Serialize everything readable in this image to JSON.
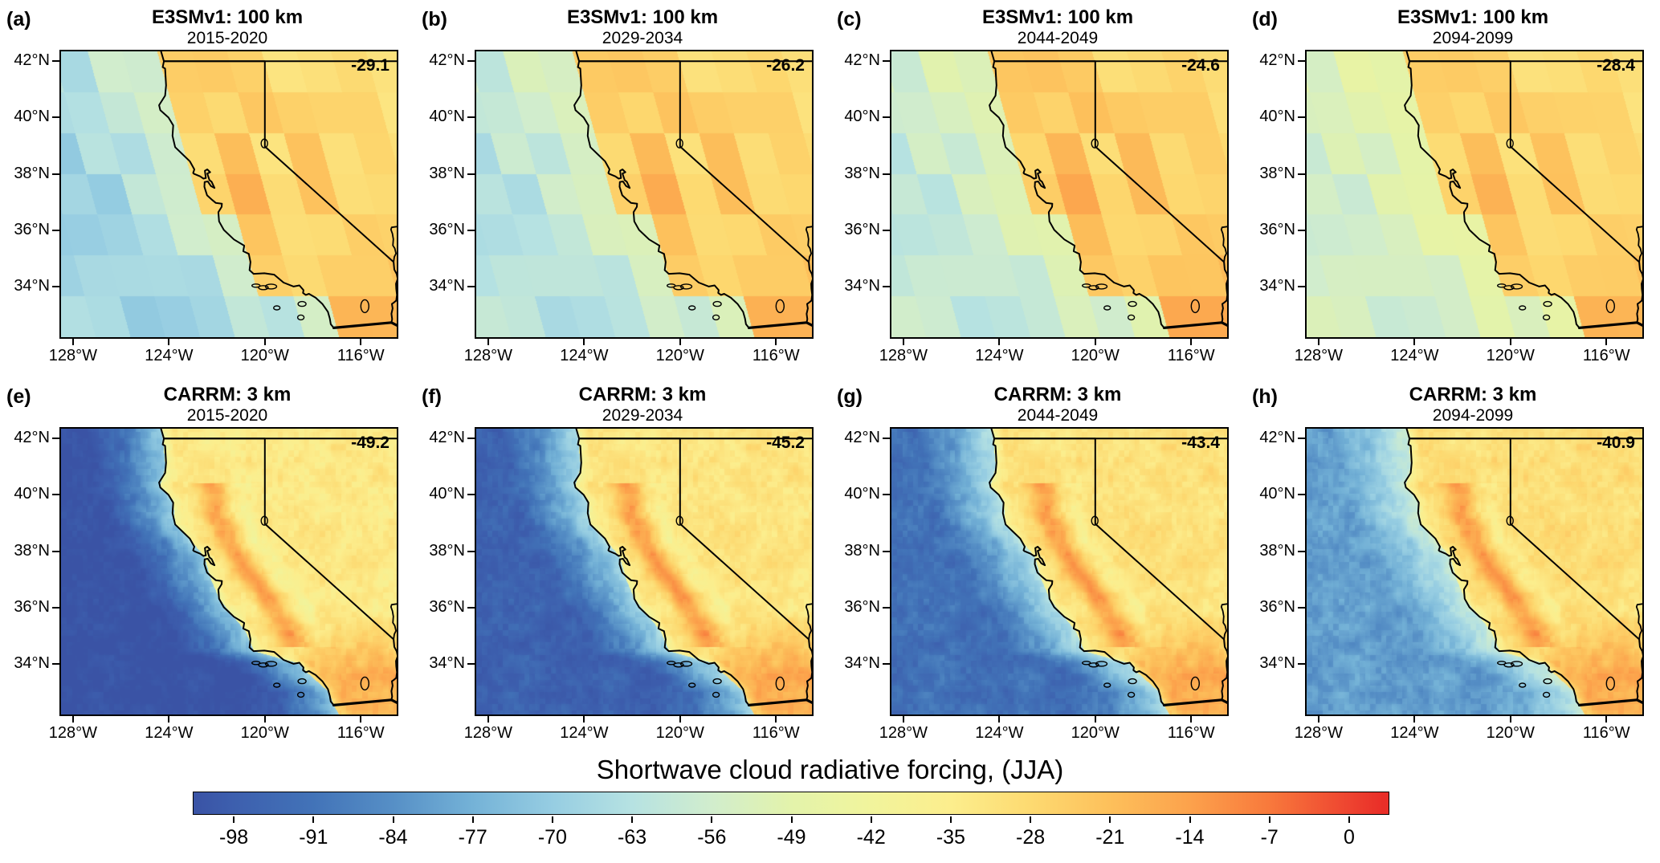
{
  "chart_data": {
    "type": "heatmap",
    "title": "Shortwave cloud radiative forcing,  (JJA)",
    "variable": "Shortwave cloud radiative forcing",
    "season": "JJA",
    "layout": "2 rows x 4 columns of geographic map panels over California",
    "colorbar_ticks": [
      -98,
      -91,
      -84,
      -77,
      -70,
      -63,
      -56,
      -49,
      -42,
      -35,
      -28,
      -21,
      -14,
      -7,
      0
    ],
    "map_extent": {
      "lon_ticks": [
        "128°W",
        "124°W",
        "120°W",
        "116°W"
      ],
      "lat_ticks": [
        "42°N",
        "40°N",
        "38°N",
        "36°N",
        "34°N"
      ]
    },
    "panels": [
      {
        "id": "a",
        "model": "E3SMv1: 100 km",
        "period": "2015-2020",
        "domain_mean": -29.1
      },
      {
        "id": "b",
        "model": "E3SMv1: 100 km",
        "period": "2029-2034",
        "domain_mean": -26.2
      },
      {
        "id": "c",
        "model": "E3SMv1: 100 km",
        "period": "2044-2049",
        "domain_mean": -24.6
      },
      {
        "id": "d",
        "model": "E3SMv1: 100 km",
        "period": "2094-2099",
        "domain_mean": -28.4
      },
      {
        "id": "e",
        "model": "CARRM: 3 km",
        "period": "2015-2020",
        "domain_mean": -49.2
      },
      {
        "id": "f",
        "model": "CARRM: 3 km",
        "period": "2029-2034",
        "domain_mean": -45.2
      },
      {
        "id": "g",
        "model": "CARRM: 3 km",
        "period": "2044-2049",
        "domain_mean": -43.4
      },
      {
        "id": "h",
        "model": "CARRM: 3 km",
        "period": "2094-2099",
        "domain_mean": -40.9
      }
    ]
  },
  "panels": [
    {
      "letter": "(a)",
      "model": "E3SMv1: 100 km",
      "period": "2015-2020",
      "mean": "-29.1",
      "field": {
        "coarse": true,
        "cell": 1.45,
        "skew": 0.22,
        "jitter": 4.5,
        "noise": 2.5,
        "ocean_scale": 4.2,
        "coast_dip": 4,
        "sierra_dip": 3,
        "mesh": 0,
        "ocean_near": -51,
        "ocean_far": -67,
        "land_base": -27,
        "valley_boost": 9,
        "south_boost": 7
      }
    },
    {
      "letter": "(b)",
      "model": "E3SMv1: 100 km",
      "period": "2029-2034",
      "mean": "-26.2",
      "field": {
        "coarse": true,
        "cell": 1.45,
        "skew": 0.22,
        "jitter": 4.5,
        "noise": 2.5,
        "ocean_scale": 4.2,
        "coast_dip": 4,
        "sierra_dip": 3,
        "mesh": 0,
        "ocean_near": -49,
        "ocean_far": -62,
        "land_base": -26,
        "valley_boost": 9,
        "south_boost": 7
      }
    },
    {
      "letter": "(c)",
      "model": "E3SMv1: 100 km",
      "period": "2044-2049",
      "mean": "-24.6",
      "field": {
        "coarse": true,
        "cell": 1.45,
        "skew": 0.22,
        "jitter": 4.5,
        "noise": 2.5,
        "ocean_scale": 4.2,
        "coast_dip": 4,
        "sierra_dip": 3,
        "mesh": 0,
        "ocean_near": -47,
        "ocean_far": -59,
        "land_base": -25,
        "valley_boost": 9,
        "south_boost": 8
      }
    },
    {
      "letter": "(d)",
      "model": "E3SMv1: 100 km",
      "period": "2094-2099",
      "mean": "-28.4",
      "field": {
        "coarse": true,
        "cell": 1.45,
        "skew": 0.22,
        "jitter": 4,
        "noise": 2.5,
        "ocean_scale": 4.2,
        "coast_dip": 4,
        "sierra_dip": 3,
        "mesh": 0,
        "ocean_near": -44,
        "ocean_far": -55,
        "land_base": -26.5,
        "valley_boost": 8,
        "south_boost": 7
      }
    },
    {
      "letter": "(e)",
      "model": "CARRM: 3 km",
      "period": "2015-2020",
      "mean": "-49.2",
      "field": {
        "coarse": false,
        "cell": 0,
        "skew": 0,
        "jitter": 0,
        "noise": 4.5,
        "ocean_scale": 3.0,
        "coast_dip": 9,
        "sierra_dip": 5,
        "mesh": 2.2,
        "ocean_near": -70,
        "ocean_far": -104,
        "land_base": -33,
        "valley_boost": 18,
        "south_boost": 15
      }
    },
    {
      "letter": "(f)",
      "model": "CARRM: 3 km",
      "period": "2029-2034",
      "mean": "-45.2",
      "field": {
        "coarse": false,
        "cell": 0,
        "skew": 0,
        "jitter": 0,
        "noise": 4.5,
        "ocean_scale": 3.0,
        "coast_dip": 9,
        "sierra_dip": 5,
        "mesh": 2.2,
        "ocean_near": -66,
        "ocean_far": -97,
        "land_base": -31.5,
        "valley_boost": 18,
        "south_boost": 15
      }
    },
    {
      "letter": "(g)",
      "model": "CARRM: 3 km",
      "period": "2044-2049",
      "mean": "-43.4",
      "field": {
        "coarse": false,
        "cell": 0,
        "skew": 0,
        "jitter": 0,
        "noise": 4.5,
        "ocean_scale": 3.0,
        "coast_dip": 9,
        "sierra_dip": 5,
        "mesh": 2.2,
        "ocean_near": -63,
        "ocean_far": -92,
        "land_base": -30.5,
        "valley_boost": 17,
        "south_boost": 14
      }
    },
    {
      "letter": "(h)",
      "model": "CARRM: 3 km",
      "period": "2094-2099",
      "mean": "-40.9",
      "field": {
        "coarse": false,
        "cell": 0,
        "skew": 0,
        "jitter": 0,
        "noise": 4.5,
        "ocean_scale": 3.0,
        "coast_dip": 9,
        "sierra_dip": 5,
        "mesh": 2.2,
        "ocean_near": -58,
        "ocean_far": -81,
        "land_base": -29.5,
        "valley_boost": 16,
        "south_boost": 13
      }
    }
  ],
  "axes": {
    "lon_range": [
      -128.5,
      -114.5
    ],
    "lat_range": [
      32.2,
      42.35
    ],
    "x_ticks": [
      {
        "label": "128°W",
        "lon": -128
      },
      {
        "label": "124°W",
        "lon": -124
      },
      {
        "label": "120°W",
        "lon": -120
      },
      {
        "label": "116°W",
        "lon": -116
      }
    ],
    "y_ticks": [
      {
        "label": "42°N",
        "lat": 42
      },
      {
        "label": "40°N",
        "lat": 40
      },
      {
        "label": "38°N",
        "lat": 38
      },
      {
        "label": "36°N",
        "lat": 36
      },
      {
        "label": "34°N",
        "lat": 34
      }
    ]
  },
  "colorbar": {
    "title": "Shortwave cloud radiative forcing,  (JJA)",
    "domain": [
      -101.5,
      3.5
    ],
    "ticks": [
      {
        "label": "-98",
        "v": -98
      },
      {
        "label": "-91",
        "v": -91
      },
      {
        "label": "-84",
        "v": -84
      },
      {
        "label": "-77",
        "v": -77
      },
      {
        "label": "-70",
        "v": -70
      },
      {
        "label": "-63",
        "v": -63
      },
      {
        "label": "-56",
        "v": -56
      },
      {
        "label": "-49",
        "v": -49
      },
      {
        "label": "-42",
        "v": -42
      },
      {
        "label": "-35",
        "v": -35
      },
      {
        "label": "-28",
        "v": -28
      },
      {
        "label": "-21",
        "v": -21
      },
      {
        "label": "-14",
        "v": -14
      },
      {
        "label": "-7",
        "v": -7
      },
      {
        "label": "0",
        "v": 0
      }
    ],
    "colormap": [
      [
        -105,
        "#3a53a5"
      ],
      [
        -98,
        "#3d5fae"
      ],
      [
        -91,
        "#4273b8"
      ],
      [
        -84,
        "#568fc6"
      ],
      [
        -77,
        "#74b2d7"
      ],
      [
        -70,
        "#96cde2"
      ],
      [
        -63,
        "#b6e2e2"
      ],
      [
        -56,
        "#d1edcd"
      ],
      [
        -49,
        "#e3f3ab"
      ],
      [
        -42,
        "#f1f49c"
      ],
      [
        -35,
        "#fcee8d"
      ],
      [
        -28,
        "#fdda71"
      ],
      [
        -21,
        "#fdc05b"
      ],
      [
        -14,
        "#fca24c"
      ],
      [
        -7,
        "#f8793c"
      ],
      [
        0,
        "#ee4430"
      ],
      [
        3,
        "#e92e28"
      ]
    ]
  },
  "geo": {
    "california": [
      [
        -124.21,
        42.0
      ],
      [
        -120.0,
        42.0
      ],
      [
        -120.0,
        38.97
      ],
      [
        -114.63,
        34.87
      ],
      [
        -114.6,
        34.6
      ],
      [
        -114.5,
        34.44
      ],
      [
        -114.46,
        34.27
      ],
      [
        -114.53,
        34.1
      ],
      [
        -114.52,
        33.92
      ],
      [
        -114.49,
        33.7
      ],
      [
        -114.52,
        33.5
      ],
      [
        -114.62,
        33.43
      ],
      [
        -114.7,
        33.38
      ],
      [
        -114.67,
        33.22
      ],
      [
        -114.72,
        33.03
      ],
      [
        -114.69,
        32.84
      ],
      [
        -114.72,
        32.72
      ],
      [
        -117.13,
        32.53
      ],
      [
        -117.25,
        32.66
      ],
      [
        -117.29,
        32.86
      ],
      [
        -117.37,
        33.1
      ],
      [
        -117.6,
        33.38
      ],
      [
        -117.88,
        33.6
      ],
      [
        -118.16,
        33.74
      ],
      [
        -118.29,
        33.7
      ],
      [
        -118.41,
        33.77
      ],
      [
        -118.39,
        33.87
      ],
      [
        -118.56,
        34.04
      ],
      [
        -118.8,
        34.0
      ],
      [
        -119.22,
        34.14
      ],
      [
        -119.61,
        34.42
      ],
      [
        -120.02,
        34.47
      ],
      [
        -120.47,
        34.45
      ],
      [
        -120.64,
        34.58
      ],
      [
        -120.6,
        34.87
      ],
      [
        -120.67,
        35.16
      ],
      [
        -120.9,
        35.25
      ],
      [
        -120.86,
        35.45
      ],
      [
        -121.29,
        35.67
      ],
      [
        -121.71,
        36.01
      ],
      [
        -121.91,
        36.31
      ],
      [
        -121.94,
        36.64
      ],
      [
        -121.8,
        36.83
      ],
      [
        -121.79,
        36.94
      ],
      [
        -122.05,
        36.97
      ],
      [
        -122.19,
        37.07
      ],
      [
        -122.41,
        37.24
      ],
      [
        -122.52,
        37.54
      ],
      [
        -122.51,
        37.71
      ],
      [
        -122.38,
        37.73
      ],
      [
        -122.25,
        37.57
      ],
      [
        -122.1,
        37.5
      ],
      [
        -122.22,
        37.72
      ],
      [
        -122.31,
        37.78
      ],
      [
        -122.4,
        38.01
      ],
      [
        -122.28,
        38.06
      ],
      [
        -122.4,
        38.16
      ],
      [
        -122.5,
        38.11
      ],
      [
        -122.46,
        37.85
      ],
      [
        -122.56,
        37.83
      ],
      [
        -122.7,
        37.91
      ],
      [
        -122.95,
        38.0
      ],
      [
        -122.99,
        38.03
      ],
      [
        -122.94,
        38.16
      ],
      [
        -123.13,
        38.45
      ],
      [
        -123.44,
        38.7
      ],
      [
        -123.74,
        38.95
      ],
      [
        -123.85,
        39.35
      ],
      [
        -123.82,
        39.72
      ],
      [
        -124.02,
        40.0
      ],
      [
        -124.36,
        40.26
      ],
      [
        -124.41,
        40.44
      ],
      [
        -124.16,
        40.78
      ],
      [
        -124.12,
        41.14
      ],
      [
        -124.16,
        41.74
      ],
      [
        -124.26,
        41.79
      ],
      [
        -124.21,
        42.0
      ]
    ],
    "lines": [
      {
        "name": "state-border-42n",
        "w": 2,
        "pts": [
          [
            -124.21,
            42.0
          ],
          [
            -114.5,
            42.0
          ]
        ]
      },
      {
        "name": "oregon-coast",
        "w": 2,
        "pts": [
          [
            -124.21,
            42.0
          ],
          [
            -124.33,
            42.35
          ]
        ]
      },
      {
        "name": "nv-az-colorado-river",
        "w": 1.8,
        "pts": [
          [
            -114.63,
            34.87
          ],
          [
            -114.6,
            35.05
          ],
          [
            -114.53,
            35.17
          ],
          [
            -114.58,
            35.35
          ],
          [
            -114.66,
            35.46
          ],
          [
            -114.64,
            35.68
          ],
          [
            -114.68,
            35.88
          ],
          [
            -114.74,
            36.02
          ],
          [
            -114.71,
            36.1
          ],
          [
            -114.48,
            36.13
          ]
        ]
      },
      {
        "name": "us-mexico-border",
        "w": 3.2,
        "pts": [
          [
            -117.13,
            32.53
          ],
          [
            -114.72,
            32.72
          ],
          [
            -114.45,
            32.6
          ]
        ]
      }
    ],
    "islands": [
      {
        "c": [
          -120.37,
          34.03
        ],
        "rx": 5,
        "ry": 2
      },
      {
        "c": [
          -120.06,
          33.96
        ],
        "rx": 6,
        "ry": 2.5
      },
      {
        "c": [
          -119.74,
          34.0
        ],
        "rx": 7,
        "ry": 3
      },
      {
        "c": [
          -119.5,
          33.24
        ],
        "rx": 4,
        "ry": 2.5
      },
      {
        "c": [
          -118.45,
          33.38
        ],
        "rx": 5,
        "ry": 3
      },
      {
        "c": [
          -118.5,
          32.9
        ],
        "rx": 4,
        "ry": 3
      }
    ],
    "lakes": [
      {
        "name": "lake-tahoe",
        "c": [
          -120.02,
          39.08
        ],
        "rx": 4,
        "ry": 5.5
      },
      {
        "name": "salton-sea",
        "c": [
          -115.83,
          33.3
        ],
        "rx": 5,
        "ry": 8
      }
    ],
    "coast_profile": [
      [
        32.2,
        -116.9
      ],
      [
        32.53,
        -117.13
      ],
      [
        33.0,
        -117.33
      ],
      [
        33.7,
        -118.25
      ],
      [
        34.0,
        -118.55
      ],
      [
        34.45,
        -120.46
      ],
      [
        35.15,
        -120.8
      ],
      [
        36.3,
        -121.9
      ],
      [
        37.0,
        -122.25
      ],
      [
        37.8,
        -122.52
      ],
      [
        38.4,
        -123.1
      ],
      [
        38.95,
        -123.74
      ],
      [
        39.8,
        -123.83
      ],
      [
        40.3,
        -124.38
      ],
      [
        41.0,
        -124.14
      ],
      [
        42.35,
        -124.3
      ]
    ],
    "valley_profile": [
      [
        34.7,
        -118.8
      ],
      [
        35.4,
        -119.2
      ],
      [
        36.4,
        -119.9
      ],
      [
        37.4,
        -120.8
      ],
      [
        38.4,
        -121.6
      ],
      [
        39.4,
        -122.05
      ],
      [
        40.3,
        -122.3
      ]
    ]
  }
}
